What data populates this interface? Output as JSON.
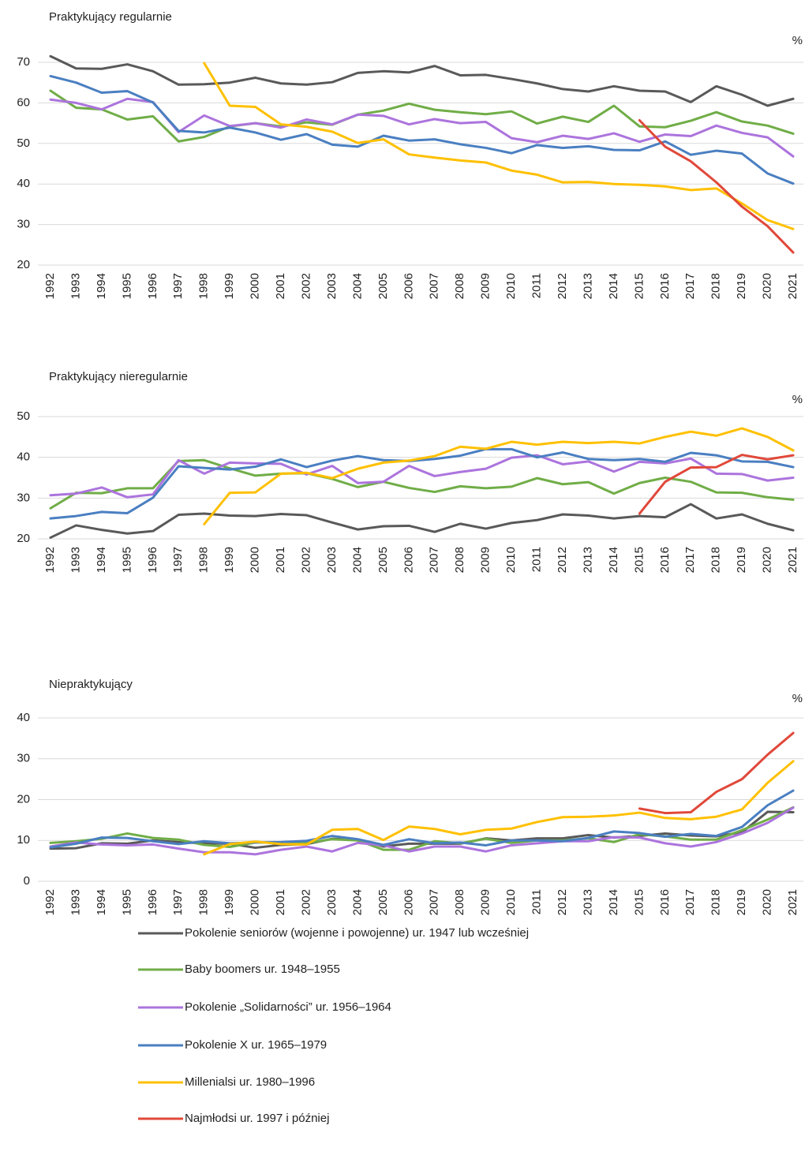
{
  "chart_data": [
    {
      "type": "line",
      "title": "Praktykujący regularnie",
      "unit": "%",
      "categories": [
        "1992",
        "1993",
        "1994",
        "1995",
        "1996",
        "1997",
        "1998",
        "1999",
        "2000",
        "2001",
        "2002",
        "2003",
        "2004",
        "2005",
        "2006",
        "2007",
        "2008",
        "2009",
        "2010",
        "2011",
        "2012",
        "2013",
        "2014",
        "2015",
        "2016",
        "2017",
        "2018",
        "2019",
        "2020",
        "2021"
      ],
      "ylim": [
        20,
        70
      ],
      "yticks": [
        20,
        30,
        40,
        50,
        60,
        70
      ],
      "grid": true,
      "series": [
        {
          "name": "Pokolenie seniorów (wojenne i powojenne) ur. 1947 lub wcześniej",
          "color": "#595959",
          "values": [
            71.5,
            68.5,
            68.4,
            69.5,
            67.8,
            64.5,
            64.6,
            65.0,
            66.2,
            64.8,
            64.5,
            65.1,
            67.4,
            67.8,
            67.5,
            69.1,
            66.8,
            66.9,
            65.9,
            64.8,
            63.4,
            62.8,
            64.1,
            63.0,
            62.8,
            60.2,
            64.1,
            62.0,
            59.3,
            61.0
          ]
        },
        {
          "name": "Baby boomers ur. 1948–1955",
          "color": "#70ad47",
          "values": [
            63.0,
            58.8,
            58.4,
            55.9,
            56.7,
            50.5,
            51.6,
            54.2,
            55.0,
            54.2,
            55.2,
            54.6,
            57.1,
            58.1,
            59.8,
            58.3,
            57.7,
            57.2,
            57.9,
            54.9,
            56.6,
            55.3,
            59.3,
            54.2,
            54.0,
            55.6,
            57.7,
            55.4,
            54.4,
            52.4
          ]
        },
        {
          "name": "Pokolenie „Solidarności” ur. 1956–1964",
          "color": "#ac74dd",
          "values": [
            60.8,
            60.0,
            58.4,
            61.0,
            60.2,
            52.8,
            56.9,
            54.3,
            55.0,
            53.9,
            55.9,
            54.7,
            57.1,
            56.8,
            54.7,
            56.0,
            55.0,
            55.3,
            51.3,
            50.3,
            51.9,
            51.1,
            52.5,
            50.4,
            52.2,
            51.8,
            54.4,
            52.6,
            51.5,
            46.8
          ]
        },
        {
          "name": "Pokolenie X ur.  1965–1979",
          "color": "#4a7fc1",
          "values": [
            66.6,
            65.0,
            62.5,
            62.9,
            60.1,
            53.1,
            52.7,
            53.9,
            52.7,
            50.9,
            52.3,
            49.7,
            49.2,
            51.9,
            50.7,
            51.0,
            49.8,
            48.9,
            47.6,
            49.6,
            48.9,
            49.3,
            48.4,
            48.3,
            50.5,
            47.2,
            48.2,
            47.5,
            42.6,
            40.1
          ]
        },
        {
          "name": "Millenialsi ur. 1980–1996",
          "color": "#ffc000",
          "values": [
            null,
            null,
            null,
            null,
            null,
            null,
            69.8,
            59.3,
            59.0,
            54.7,
            54.1,
            52.9,
            50.1,
            51.0,
            47.3,
            46.5,
            45.8,
            45.3,
            43.3,
            42.3,
            40.4,
            40.5,
            40.0,
            39.8,
            39.4,
            38.5,
            38.9,
            35.2,
            31.1,
            28.9
          ]
        },
        {
          "name": "Najmłodsi ur. 1997  i później",
          "color": "#e0483a",
          "values": [
            null,
            null,
            null,
            null,
            null,
            null,
            null,
            null,
            null,
            null,
            null,
            null,
            null,
            null,
            null,
            null,
            null,
            null,
            null,
            null,
            null,
            null,
            null,
            55.7,
            49.2,
            45.6,
            40.4,
            34.4,
            29.6,
            23.1
          ]
        }
      ]
    },
    {
      "type": "line",
      "title": "Praktykujący nieregularnie",
      "unit": "%",
      "categories": [
        "1992",
        "1993",
        "1994",
        "1995",
        "1996",
        "1997",
        "1998",
        "1999",
        "2000",
        "2001",
        "2002",
        "2003",
        "2004",
        "2005",
        "2006",
        "2007",
        "2008",
        "2009",
        "2010",
        "2011",
        "2012",
        "2013",
        "2014",
        "2015",
        "2016",
        "2017",
        "2018",
        "2019",
        "2020",
        "2021"
      ],
      "ylim": [
        20,
        50
      ],
      "yticks": [
        20,
        30,
        40,
        50
      ],
      "grid": true,
      "series": [
        {
          "name": "Pokolenie seniorów (wojenne i powojenne) ur. 1947 lub wcześniej",
          "color": "#595959",
          "values": [
            20.3,
            23.3,
            22.2,
            21.3,
            21.9,
            25.9,
            26.2,
            25.7,
            25.6,
            26.1,
            25.8,
            24.0,
            22.3,
            23.1,
            23.2,
            21.7,
            23.7,
            22.5,
            23.9,
            24.6,
            26.0,
            25.7,
            25.0,
            25.6,
            25.3,
            28.5,
            25.0,
            26.0,
            23.7,
            22.1
          ]
        },
        {
          "name": "Baby boomers ur. 1948–1955",
          "color": "#70ad47",
          "values": [
            27.5,
            31.3,
            31.2,
            32.4,
            32.4,
            39.1,
            39.3,
            37.3,
            35.5,
            36.0,
            36.1,
            34.7,
            32.7,
            34.0,
            32.5,
            31.5,
            32.9,
            32.4,
            32.8,
            34.9,
            33.4,
            33.9,
            31.1,
            33.7,
            35.0,
            34.0,
            31.4,
            31.3,
            30.2,
            29.6
          ]
        },
        {
          "name": "Pokolenie „Solidarności” ur. 1956–1964",
          "color": "#ac74dd",
          "values": [
            30.7,
            31.1,
            32.6,
            30.2,
            30.9,
            39.3,
            36.0,
            38.7,
            38.5,
            38.4,
            35.8,
            37.9,
            33.7,
            34.0,
            37.9,
            35.4,
            36.4,
            37.2,
            39.9,
            40.5,
            38.3,
            39.0,
            36.5,
            38.9,
            38.5,
            39.7,
            36.0,
            35.9,
            34.3,
            35.0
          ]
        },
        {
          "name": "Pokolenie X ur.  1965–1979",
          "color": "#4a7fc1",
          "values": [
            25.0,
            25.6,
            26.6,
            26.3,
            30.1,
            37.8,
            37.4,
            37.0,
            37.7,
            39.5,
            37.6,
            39.2,
            40.3,
            39.3,
            39.1,
            39.6,
            40.4,
            42.0,
            42.0,
            40.0,
            41.2,
            39.6,
            39.3,
            39.6,
            38.9,
            41.1,
            40.5,
            39.0,
            38.9,
            37.6
          ]
        },
        {
          "name": "Millenialsi ur. 1980–1996",
          "color": "#ffc000",
          "values": [
            null,
            null,
            null,
            null,
            null,
            null,
            23.6,
            31.3,
            31.4,
            36.0,
            36.2,
            34.9,
            37.2,
            38.7,
            39.2,
            40.3,
            42.6,
            42.1,
            43.8,
            43.1,
            43.8,
            43.5,
            43.8,
            43.4,
            45.0,
            46.3,
            45.3,
            47.1,
            45.0,
            41.7
          ]
        },
        {
          "name": "Najmłodsi ur. 1997  i później",
          "color": "#e0483a",
          "values": [
            null,
            null,
            null,
            null,
            null,
            null,
            null,
            null,
            null,
            null,
            null,
            null,
            null,
            null,
            null,
            null,
            null,
            null,
            null,
            null,
            null,
            null,
            null,
            26.2,
            34.0,
            37.5,
            37.6,
            40.6,
            39.5,
            40.5
          ]
        }
      ]
    },
    {
      "type": "line",
      "title": "Niepraktykujący",
      "unit": "%",
      "categories": [
        "1992",
        "1993",
        "1994",
        "1995",
        "1996",
        "1997",
        "1998",
        "1999",
        "2000",
        "2001",
        "2002",
        "2003",
        "2004",
        "2005",
        "2006",
        "2007",
        "2008",
        "2009",
        "2010",
        "2011",
        "2012",
        "2013",
        "2014",
        "2015",
        "2016",
        "2017",
        "2018",
        "2019",
        "2020",
        "2021"
      ],
      "ylim": [
        0,
        40
      ],
      "yticks": [
        0,
        10,
        20,
        30,
        40
      ],
      "grid": true,
      "series": [
        {
          "name": "Pokolenie seniorów (wojenne i powojenne) ur. 1947 lub wcześniej",
          "color": "#595959",
          "values": [
            8.0,
            8.1,
            9.3,
            9.2,
            10.0,
            9.6,
            9.3,
            9.2,
            8.2,
            8.9,
            9.1,
            10.4,
            10.2,
            8.5,
            9.2,
            9.2,
            9.2,
            10.5,
            10.0,
            10.5,
            10.5,
            11.3,
            10.7,
            11.1,
            11.7,
            11.2,
            11.0,
            12.0,
            17.0,
            16.9
          ]
        },
        {
          "name": "Baby boomers ur. 1948–1955",
          "color": "#70ad47",
          "values": [
            9.4,
            9.8,
            10.4,
            11.7,
            10.6,
            10.2,
            8.9,
            8.4,
            9.5,
            9.5,
            9.4,
            10.3,
            10.0,
            7.7,
            7.7,
            9.8,
            9.3,
            10.4,
            9.4,
            10.0,
            10.0,
            10.5,
            9.6,
            11.5,
            11.0,
            10.2,
            10.2,
            12.5,
            15.1,
            18.1
          ]
        },
        {
          "name": "Pokolenie „Solidarności” ur. 1956–1964",
          "color": "#ac74dd",
          "values": [
            8.5,
            9.5,
            9.0,
            8.8,
            9.0,
            8.0,
            7.1,
            7.1,
            6.6,
            7.7,
            8.5,
            7.3,
            9.4,
            8.8,
            7.3,
            8.5,
            8.5,
            7.3,
            8.8,
            9.3,
            9.8,
            9.8,
            10.8,
            10.7,
            9.3,
            8.5,
            9.6,
            11.7,
            14.3,
            18.0
          ]
        },
        {
          "name": "Pokolenie X ur.  1965–1979",
          "color": "#4a7fc1",
          "values": [
            8.3,
            9.2,
            10.7,
            10.6,
            9.8,
            9.1,
            9.8,
            9.3,
            9.5,
            9.6,
            9.9,
            11.1,
            10.3,
            8.9,
            10.3,
            9.3,
            9.5,
            8.8,
            10.0,
            10.0,
            9.8,
            10.6,
            12.2,
            11.8,
            10.9,
            11.6,
            11.1,
            13.3,
            18.6,
            22.2
          ]
        },
        {
          "name": "Millenialsi ur. 1980–1996",
          "color": "#ffc000",
          "values": [
            null,
            null,
            null,
            null,
            null,
            null,
            6.6,
            9.1,
            9.7,
            9.1,
            9.0,
            12.6,
            12.8,
            10.1,
            13.4,
            12.8,
            11.5,
            12.6,
            12.9,
            14.5,
            15.7,
            15.8,
            16.1,
            16.8,
            15.5,
            15.2,
            15.8,
            17.6,
            24.1,
            29.4
          ]
        },
        {
          "name": "Najmłodsi ur. 1997  i później",
          "color": "#e0483a",
          "values": [
            null,
            null,
            null,
            null,
            null,
            null,
            null,
            null,
            null,
            null,
            null,
            null,
            null,
            null,
            null,
            null,
            null,
            null,
            null,
            null,
            null,
            null,
            null,
            17.8,
            16.7,
            16.9,
            21.9,
            25.0,
            31.0,
            36.3
          ]
        }
      ]
    }
  ]
}
